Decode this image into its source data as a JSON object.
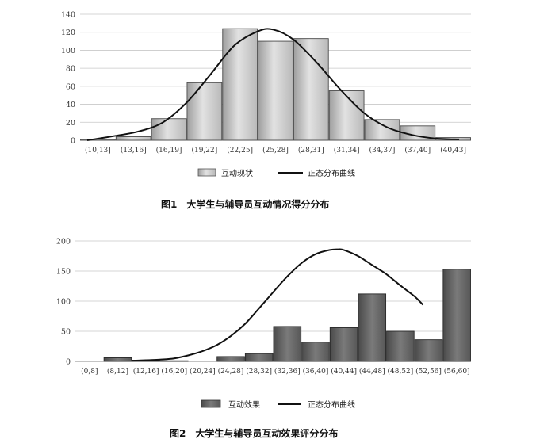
{
  "chart_data": [
    {
      "type": "bar",
      "categories": [
        "(10,13]",
        "(13,16]",
        "(16,19]",
        "(19,22]",
        "(22,25]",
        "(25,28]",
        "(28,31]",
        "(31,34]",
        "(34,37]",
        "(37,40]",
        "(40,43]"
      ],
      "series": [
        {
          "name": "互动现状",
          "values": [
            1,
            4,
            24,
            64,
            124,
            110,
            113,
            55,
            23,
            16,
            3
          ]
        },
        {
          "name": "正态分布曲线",
          "type": "line",
          "x": [
            10.6,
            13,
            15,
            17,
            19,
            21,
            23,
            25,
            26.3,
            28,
            30,
            32,
            34,
            36,
            38,
            40,
            42
          ],
          "values": [
            0,
            5,
            10,
            20,
            42,
            73,
            105,
            121,
            123,
            112,
            86,
            56,
            30,
            14,
            6,
            2,
            1
          ]
        }
      ],
      "yticks": [
        0,
        20,
        40,
        60,
        80,
        100,
        120,
        140
      ],
      "ylim": [
        0,
        140
      ],
      "grid": true,
      "legend": "bottom",
      "caption": "图1　大学生与辅导员互动情况得分分布"
    },
    {
      "type": "bar",
      "categories": [
        "(0,8]",
        "(8,12]",
        "(12,16]",
        "(16,20]",
        "(20,24]",
        "(24,28]",
        "(28,32]",
        "(32,36]",
        "(36,40]",
        "(40,44]",
        "(44,48]",
        "(48,52]",
        "(52,56]",
        "(56,60]"
      ],
      "series": [
        {
          "name": "互动效果",
          "values": [
            0,
            6,
            2,
            1,
            0,
            8,
            13,
            58,
            32,
            56,
            112,
            50,
            36,
            153
          ]
        },
        {
          "name": "正态分布曲线",
          "type": "line",
          "x": [
            12,
            14,
            16,
            18,
            20,
            22,
            24,
            26,
            28,
            30,
            32,
            34,
            36,
            38,
            40,
            41.2,
            42,
            44,
            46,
            48,
            50,
            52,
            53.2
          ],
          "values": [
            1,
            2,
            3,
            5,
            10,
            17,
            27,
            42,
            62,
            88,
            115,
            141,
            163,
            178,
            185,
            186,
            185,
            175,
            160,
            145,
            126,
            108,
            94
          ]
        }
      ],
      "yticks": [
        0,
        50,
        100,
        150,
        200
      ],
      "ylim": [
        0,
        200
      ],
      "grid": true,
      "legend": "bottom",
      "caption": "图2　大学生与辅导员互动效果评分分布"
    }
  ]
}
